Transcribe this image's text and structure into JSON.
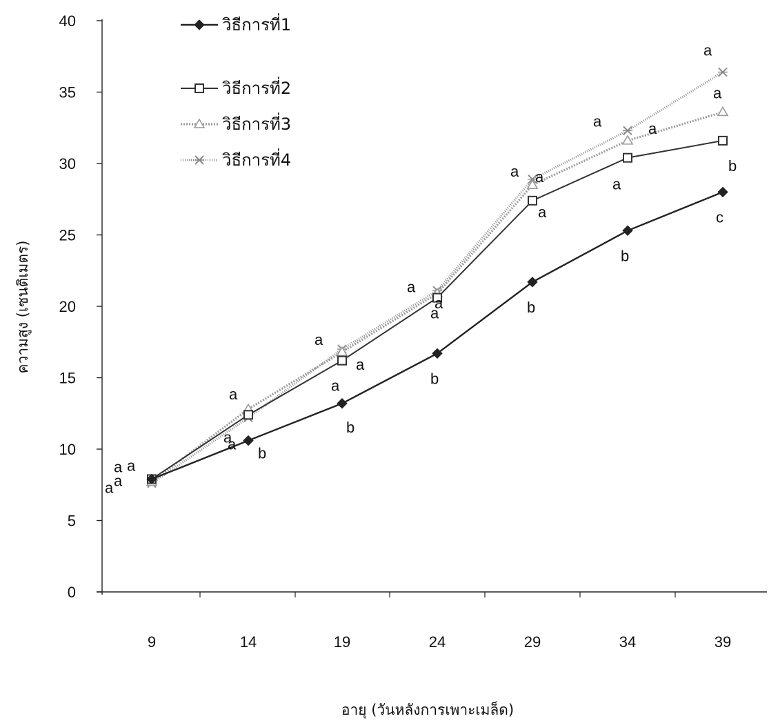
{
  "chart_data": {
    "type": "line",
    "title": "",
    "xlabel": "อายุ (วันหลังการเพาะเมล็ด)",
    "ylabel": "ความสูง (เซนติเมตร)",
    "categories": [
      "9",
      "14",
      "19",
      "24",
      "29",
      "34",
      "39"
    ],
    "ylim": [
      0,
      40
    ],
    "yticks": [
      "0",
      "5",
      "10",
      "15",
      "20",
      "25",
      "30",
      "35",
      "40"
    ],
    "legend_position": "top-left",
    "grid": false,
    "series": [
      {
        "name": "วิธีการที่1",
        "marker": "diamond-filled",
        "color": "#222222",
        "values": [
          7.9,
          10.6,
          13.2,
          16.7,
          21.7,
          25.3,
          28.0
        ],
        "letters": [
          "a",
          "b",
          "b",
          "b",
          "b",
          "b",
          "c"
        ]
      },
      {
        "name": "วิธีการที่2",
        "marker": "square-open",
        "color": "#333333",
        "values": [
          7.9,
          12.4,
          16.2,
          20.6,
          27.4,
          30.4,
          31.6
        ],
        "letters": [
          "a",
          "a",
          "a",
          "a",
          "a",
          "a",
          "b"
        ]
      },
      {
        "name": "วิธีการที่3",
        "marker": "triangle-light",
        "color": "#9a9a9a",
        "values": [
          7.7,
          12.8,
          16.8,
          20.9,
          28.5,
          31.6,
          33.6
        ],
        "letters": [
          "a",
          "a",
          "a",
          "a",
          "a",
          "a",
          "a"
        ]
      },
      {
        "name": "วิธีการที่4",
        "marker": "x-light",
        "color": "#8c8c8c",
        "values": [
          7.6,
          12.2,
          17.0,
          21.1,
          28.9,
          32.3,
          36.4
        ],
        "letters": [
          "a",
          "a",
          "a",
          "a",
          "a",
          "a",
          "a"
        ]
      }
    ]
  }
}
